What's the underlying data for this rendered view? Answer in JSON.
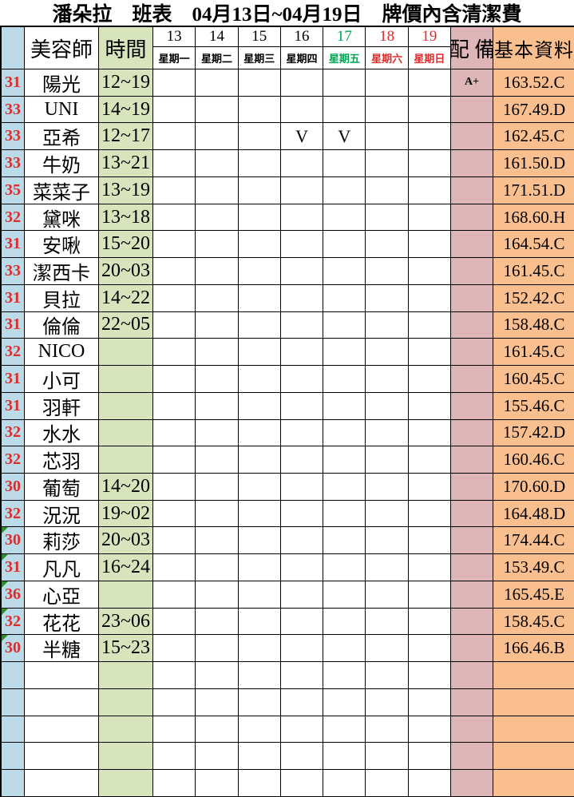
{
  "title": "潘朵拉　班表　04月13日~04月19日　牌價內含清潔費",
  "header": {
    "beautician_col": "美容師",
    "time_col": "時間",
    "equipment_col": "配 備",
    "basic_info_col": "基本資料",
    "days": [
      {
        "date": "13",
        "weekday": "星期一",
        "color": "#000000"
      },
      {
        "date": "14",
        "weekday": "星期二",
        "color": "#000000"
      },
      {
        "date": "15",
        "weekday": "星期三",
        "color": "#000000"
      },
      {
        "date": "16",
        "weekday": "星期四",
        "color": "#000000"
      },
      {
        "date": "17",
        "weekday": "星期五",
        "color": "#00A550"
      },
      {
        "date": "18",
        "weekday": "星期六",
        "color": "#E02B2B"
      },
      {
        "date": "19",
        "weekday": "星期日",
        "color": "#E02B2B"
      }
    ]
  },
  "rows": [
    {
      "num": "31",
      "name": "陽光",
      "time": "12~19",
      "days": [
        "",
        "",
        "",
        "",
        "",
        "",
        ""
      ],
      "equip": "A+",
      "info": "163.52.C",
      "corner": false
    },
    {
      "num": "33",
      "name": "UNI",
      "time": "14~19",
      "days": [
        "",
        "",
        "",
        "",
        "",
        "",
        ""
      ],
      "equip": "",
      "info": "167.49.D",
      "corner": false
    },
    {
      "num": "33",
      "name": "亞希",
      "time": "12~17",
      "days": [
        "",
        "",
        "",
        "V",
        "V",
        "",
        ""
      ],
      "equip": "",
      "info": "162.45.C",
      "corner": false
    },
    {
      "num": "33",
      "name": "牛奶",
      "time": "13~21",
      "days": [
        "",
        "",
        "",
        "",
        "",
        "",
        ""
      ],
      "equip": "",
      "info": "161.50.D",
      "corner": false
    },
    {
      "num": "35",
      "name": "菜菜子",
      "time": "13~19",
      "days": [
        "",
        "",
        "",
        "",
        "",
        "",
        ""
      ],
      "equip": "",
      "info": "171.51.D",
      "corner": false
    },
    {
      "num": "32",
      "name": "黛咪",
      "time": "13~18",
      "days": [
        "",
        "",
        "",
        "",
        "",
        "",
        ""
      ],
      "equip": "",
      "info": "168.60.H",
      "corner": false
    },
    {
      "num": "31",
      "name": "安啾",
      "time": "15~20",
      "days": [
        "",
        "",
        "",
        "",
        "",
        "",
        ""
      ],
      "equip": "",
      "info": "164.54.C",
      "corner": false
    },
    {
      "num": "33",
      "name": "潔西卡",
      "time": "20~03",
      "days": [
        "",
        "",
        "",
        "",
        "",
        "",
        ""
      ],
      "equip": "",
      "info": "161.45.C",
      "corner": false
    },
    {
      "num": "31",
      "name": "貝拉",
      "time": "14~22",
      "days": [
        "",
        "",
        "",
        "",
        "",
        "",
        ""
      ],
      "equip": "",
      "info": "152.42.C",
      "corner": false
    },
    {
      "num": "31",
      "name": "倫倫",
      "time": "22~05",
      "days": [
        "",
        "",
        "",
        "",
        "",
        "",
        ""
      ],
      "equip": "",
      "info": "158.48.C",
      "corner": false
    },
    {
      "num": "32",
      "name": "NICO",
      "time": "",
      "days": [
        "",
        "",
        "",
        "",
        "",
        "",
        ""
      ],
      "equip": "",
      "info": "161.45.C",
      "corner": false
    },
    {
      "num": "31",
      "name": "小可",
      "time": "",
      "days": [
        "",
        "",
        "",
        "",
        "",
        "",
        ""
      ],
      "equip": "",
      "info": "160.45.C",
      "corner": false
    },
    {
      "num": "31",
      "name": "羽軒",
      "time": "",
      "days": [
        "",
        "",
        "",
        "",
        "",
        "",
        ""
      ],
      "equip": "",
      "info": "155.46.C",
      "corner": false
    },
    {
      "num": "32",
      "name": "水水",
      "time": "",
      "days": [
        "",
        "",
        "",
        "",
        "",
        "",
        ""
      ],
      "equip": "",
      "info": "157.42.D",
      "corner": false
    },
    {
      "num": "32",
      "name": "芯羽",
      "time": "",
      "days": [
        "",
        "",
        "",
        "",
        "",
        "",
        ""
      ],
      "equip": "",
      "info": "160.46.C",
      "corner": false
    },
    {
      "num": "30",
      "name": "葡萄",
      "time": "14~20",
      "days": [
        "",
        "",
        "",
        "",
        "",
        "",
        ""
      ],
      "equip": "",
      "info": "170.60.D",
      "corner": false
    },
    {
      "num": "32",
      "name": "況況",
      "time": "19~02",
      "days": [
        "",
        "",
        "",
        "",
        "",
        "",
        ""
      ],
      "equip": "",
      "info": "164.48.D",
      "corner": false
    },
    {
      "num": "30",
      "name": "莉莎",
      "time": "20~03",
      "days": [
        "",
        "",
        "",
        "",
        "",
        "",
        ""
      ],
      "equip": "",
      "info": "174.44.C",
      "corner": true
    },
    {
      "num": "31",
      "name": "凡凡",
      "time": "16~24",
      "days": [
        "",
        "",
        "",
        "",
        "",
        "",
        ""
      ],
      "equip": "",
      "info": "153.49.C",
      "corner": true
    },
    {
      "num": "36",
      "name": "心亞",
      "time": "",
      "days": [
        "",
        "",
        "",
        "",
        "",
        "",
        ""
      ],
      "equip": "",
      "info": "165.45.E",
      "corner": true
    },
    {
      "num": "32",
      "name": "花花",
      "time": "23~06",
      "days": [
        "",
        "",
        "",
        "",
        "",
        "",
        ""
      ],
      "equip": "",
      "info": "158.45.C",
      "corner": true
    },
    {
      "num": "30",
      "name": "半糖",
      "time": "15~23",
      "days": [
        "",
        "",
        "",
        "",
        "",
        "",
        ""
      ],
      "equip": "",
      "info": "166.46.B",
      "corner": true
    },
    {
      "num": "",
      "name": "",
      "time": "",
      "days": [
        "",
        "",
        "",
        "",
        "",
        "",
        ""
      ],
      "equip": "",
      "info": "",
      "corner": false
    },
    {
      "num": "",
      "name": "",
      "time": "",
      "days": [
        "",
        "",
        "",
        "",
        "",
        "",
        ""
      ],
      "equip": "",
      "info": "",
      "corner": false
    },
    {
      "num": "",
      "name": "",
      "time": "",
      "days": [
        "",
        "",
        "",
        "",
        "",
        "",
        ""
      ],
      "equip": "",
      "info": "",
      "corner": false
    },
    {
      "num": "",
      "name": "",
      "time": "",
      "days": [
        "",
        "",
        "",
        "",
        "",
        "",
        ""
      ],
      "equip": "",
      "info": "",
      "corner": false
    },
    {
      "num": "",
      "name": "",
      "time": "",
      "days": [
        "",
        "",
        "",
        "",
        "",
        "",
        ""
      ],
      "equip": "",
      "info": "",
      "corner": false
    }
  ],
  "colors": {
    "row_number_bg": "#BADBE7",
    "time_bg": "#D7E4BC",
    "equipment_bg": "#DEB6B8",
    "basic_info_bg": "#FABF8F",
    "row_number_text": "#E02B2B",
    "friday_text": "#00A550",
    "weekend_text": "#E02B2B",
    "corner_marker": "#2E8B2E"
  }
}
